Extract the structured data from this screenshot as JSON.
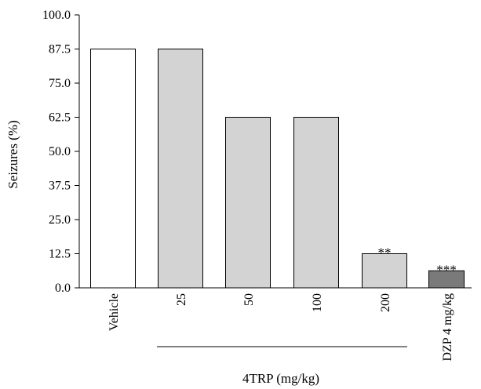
{
  "chart_data": {
    "type": "bar",
    "ylabel": "Seizures (%)",
    "xlabel": "",
    "ylim": [
      0,
      100
    ],
    "yticks": [
      "0.0",
      "12.5",
      "25.0",
      "37.5",
      "50.0",
      "62.5",
      "75.0",
      "87.5",
      "100.0"
    ],
    "grid": false,
    "categories": [
      "Vehicle",
      "25",
      "50",
      "100",
      "200",
      "DZP 4 mg/kg"
    ],
    "values": [
      87.5,
      87.5,
      62.5,
      62.5,
      12.5,
      6.25
    ],
    "bar_colors": [
      "#ffffff",
      "#d3d3d3",
      "#d3d3d3",
      "#d3d3d3",
      "#d3d3d3",
      "#7a7a7a"
    ],
    "annotations": [
      "",
      "",
      "",
      "",
      "**",
      "***"
    ],
    "group_label": "4TRP (mg/kg)"
  }
}
